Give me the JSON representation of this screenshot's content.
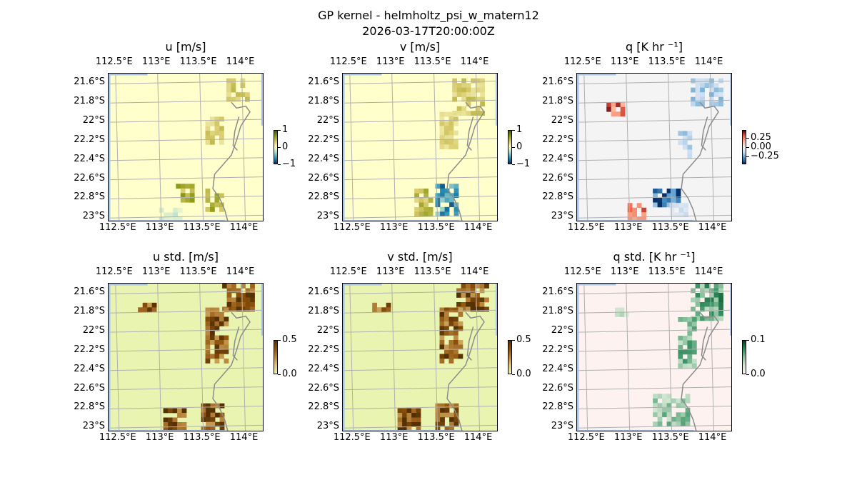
{
  "figure": {
    "title": "GP kernel - helmholtz_psi_w_matern12",
    "subtitle": "2026-03-17T20:00:00Z"
  },
  "axes": {
    "lon_ticks": [
      "112.5°E",
      "113°E",
      "113.5°E",
      "114°E"
    ],
    "lat_ticks": [
      "21.6°S",
      "21.8°S",
      "22°S",
      "22.2°S",
      "22.4°S",
      "22.6°S",
      "22.8°S",
      "23°S"
    ],
    "extent": {
      "lon": [
        112.4,
        114.25
      ],
      "lat": [
        -23.05,
        -21.5
      ]
    },
    "grid": true
  },
  "colors": {
    "land": "#a9a9a9",
    "ocean_edge": "#aac4e6",
    "coast": "#8c8c8c"
  },
  "chart_data": [
    {
      "type": "heatmap",
      "title": "u [m/s]",
      "cmap": "brown-yellow-blue diverging",
      "colorbar_ticks": [
        "1",
        "0",
        "−1"
      ],
      "range": [
        -1.6,
        1.6
      ],
      "background": "#ffffcc",
      "patches": [
        {
          "lon": [
            113.8,
            114.05
          ],
          "lat": [
            -21.75,
            -21.55
          ],
          "value": 0.6
        },
        {
          "lon": [
            113.55,
            113.75
          ],
          "lat": [
            -22.2,
            -21.95
          ],
          "value": 0.6
        },
        {
          "lon": [
            113.2,
            113.4
          ],
          "lat": [
            -22.8,
            -22.65
          ],
          "value": 0.9
        },
        {
          "lon": [
            113.55,
            113.75
          ],
          "lat": [
            -22.9,
            -22.7
          ],
          "value": 1.1
        },
        {
          "lon": [
            113.0,
            113.25
          ],
          "lat": [
            -23.0,
            -22.9
          ],
          "value": -0.3
        }
      ]
    },
    {
      "type": "heatmap",
      "title": "v [m/s]",
      "cmap": "brown-yellow-blue diverging",
      "colorbar_ticks": [
        "1",
        "0",
        "−1"
      ],
      "range": [
        -1.6,
        1.6
      ],
      "background": "#ffffcc",
      "patches": [
        {
          "lon": [
            113.7,
            114.05
          ],
          "lat": [
            -21.9,
            -21.55
          ],
          "value": 0.6
        },
        {
          "lon": [
            113.55,
            113.75
          ],
          "lat": [
            -22.25,
            -21.9
          ],
          "value": 0.5
        },
        {
          "lon": [
            113.25,
            113.45
          ],
          "lat": [
            -22.95,
            -22.7
          ],
          "value": 0.8
        },
        {
          "lon": [
            113.5,
            113.75
          ],
          "lat": [
            -22.95,
            -22.65
          ],
          "value": -1.2
        }
      ]
    },
    {
      "type": "heatmap",
      "title": "q [K hr ⁻¹]",
      "cmap": "red-blue diverging",
      "colorbar_ticks": [
        "0.25",
        "0.00",
        "−0.25"
      ],
      "range": [
        -0.45,
        0.45
      ],
      "background": "#f4f4f4",
      "patches": [
        {
          "lon": [
            113.75,
            114.1
          ],
          "lat": [
            -21.8,
            -21.55
          ],
          "value": -0.2
        },
        {
          "lon": [
            113.6,
            113.75
          ],
          "lat": [
            -22.35,
            -22.05
          ],
          "value": -0.2
        },
        {
          "lon": [
            112.75,
            112.95
          ],
          "lat": [
            -21.9,
            -21.8
          ],
          "value": 0.35
        },
        {
          "lon": [
            113.0,
            113.2
          ],
          "lat": [
            -23.0,
            -22.85
          ],
          "value": 0.3
        },
        {
          "lon": [
            113.3,
            113.6
          ],
          "lat": [
            -22.85,
            -22.7
          ],
          "value": -0.45
        },
        {
          "lon": [
            113.5,
            113.7
          ],
          "lat": [
            -22.95,
            -22.85
          ],
          "value": -0.15
        }
      ]
    },
    {
      "type": "heatmap",
      "title": "u std. [m/s]",
      "cmap": "BrBG",
      "colorbar_ticks": [
        "0.5",
        "0.0"
      ],
      "range": [
        0.0,
        0.6
      ],
      "background": "#e8f4b0",
      "patches": [
        {
          "lon": [
            113.75,
            114.1
          ],
          "lat": [
            -21.75,
            -21.5
          ],
          "value": 0.55
        },
        {
          "lon": [
            113.55,
            113.8
          ],
          "lat": [
            -22.3,
            -21.75
          ],
          "value": 0.5
        },
        {
          "lon": [
            113.05,
            113.3
          ],
          "lat": [
            -23.05,
            -22.8
          ],
          "value": 0.55
        },
        {
          "lon": [
            113.5,
            113.75
          ],
          "lat": [
            -23.05,
            -22.75
          ],
          "value": 0.55
        },
        {
          "lon": [
            112.75,
            112.95
          ],
          "lat": [
            -21.75,
            -21.7
          ],
          "value": 0.5
        }
      ]
    },
    {
      "type": "heatmap",
      "title": "v std. [m/s]",
      "cmap": "BrBG",
      "colorbar_ticks": [
        "0.5",
        "0.0"
      ],
      "range": [
        0.0,
        0.6
      ],
      "background": "#e8f4b0",
      "patches": [
        {
          "lon": [
            113.75,
            114.1
          ],
          "lat": [
            -21.75,
            -21.5
          ],
          "value": 0.55
        },
        {
          "lon": [
            113.55,
            113.8
          ],
          "lat": [
            -22.3,
            -21.75
          ],
          "value": 0.5
        },
        {
          "lon": [
            113.05,
            113.3
          ],
          "lat": [
            -23.05,
            -22.8
          ],
          "value": 0.55
        },
        {
          "lon": [
            113.5,
            113.75
          ],
          "lat": [
            -23.05,
            -22.75
          ],
          "value": 0.55
        },
        {
          "lon": [
            112.75,
            112.95
          ],
          "lat": [
            -21.75,
            -21.7
          ],
          "value": 0.5
        }
      ]
    },
    {
      "type": "heatmap",
      "title": "q std. [K hr ⁻¹]",
      "cmap": "green sequential",
      "colorbar_ticks": [
        "0.1",
        "0.0"
      ],
      "range": [
        0.0,
        0.14
      ],
      "background": "#fdf2f0",
      "patches": [
        {
          "lon": [
            113.75,
            114.1
          ],
          "lat": [
            -21.85,
            -21.5
          ],
          "value": 0.1
        },
        {
          "lon": [
            113.6,
            113.8
          ],
          "lat": [
            -22.35,
            -21.85
          ],
          "value": 0.09
        },
        {
          "lon": [
            113.3,
            113.7
          ],
          "lat": [
            -22.95,
            -22.65
          ],
          "value": 0.08
        },
        {
          "lon": [
            112.85,
            113.0
          ],
          "lat": [
            -21.8,
            -21.75
          ],
          "value": 0.06
        }
      ]
    }
  ]
}
